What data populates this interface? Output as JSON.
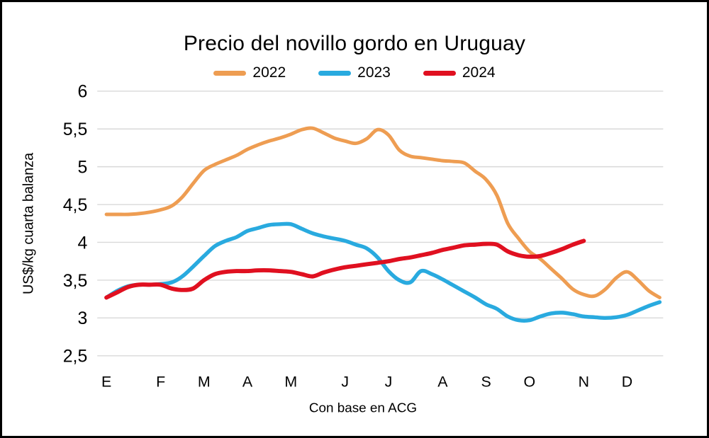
{
  "title": "Precio del novillo gordo en Uruguay",
  "y_axis": {
    "label": "US$/kg cuarta balanza",
    "ticks": [
      {
        "label": "6",
        "value": 6.0
      },
      {
        "label": "5,5",
        "value": 5.5
      },
      {
        "label": "5",
        "value": 5.0
      },
      {
        "label": "4,5",
        "value": 4.5
      },
      {
        "label": "4",
        "value": 4.0
      },
      {
        "label": "3,5",
        "value": 3.5
      },
      {
        "label": "3",
        "value": 3.0
      },
      {
        "label": "2,5",
        "value": 2.5
      }
    ]
  },
  "x_axis": {
    "label": "Con base en ACG"
  },
  "colors": {
    "grid": "#D9D9D9",
    "text": "#000000",
    "border": "#000000",
    "background": "#FFFFFF"
  },
  "chart_data": {
    "type": "line",
    "title": "Precio del novillo gordo en Uruguay",
    "xlabel": "Con base en ACG",
    "ylabel": "US$/kg cuarta balanza",
    "x_unit": "week_of_year",
    "n_weeks": 52,
    "ylim": [
      2.5,
      6.0
    ],
    "y_tick_step": 0.5,
    "grid": "horizontal",
    "legend_position": "top",
    "line_style": "smooth",
    "decimal_separator": "comma",
    "months": [
      "E",
      "F",
      "M",
      "A",
      "M",
      "J",
      "J",
      "A",
      "S",
      "O",
      "N",
      "D"
    ],
    "weeks_per_month": [
      5,
      4,
      4,
      4,
      5,
      4,
      5,
      4,
      4,
      5,
      4,
      4
    ],
    "month_start_weeks": [
      1,
      6,
      10,
      14,
      18,
      23,
      27,
      32,
      36,
      40,
      45,
      49
    ],
    "series": [
      {
        "name": "2022",
        "color": "#EE9D52",
        "values": [
          4.37,
          4.37,
          4.37,
          4.38,
          4.4,
          4.43,
          4.48,
          4.6,
          4.78,
          4.95,
          5.03,
          5.09,
          5.15,
          5.23,
          5.29,
          5.34,
          5.38,
          5.43,
          5.49,
          5.51,
          5.45,
          5.38,
          5.34,
          5.31,
          5.37,
          5.49,
          5.42,
          5.22,
          5.14,
          5.12,
          5.1,
          5.08,
          5.07,
          5.05,
          4.94,
          4.83,
          4.62,
          4.25,
          4.05,
          3.88,
          3.78,
          3.65,
          3.52,
          3.38,
          3.31,
          3.29,
          3.38,
          3.53,
          3.61,
          3.5,
          3.36,
          3.27
        ]
      },
      {
        "name": "2023",
        "color": "#29AADF",
        "values": [
          3.27,
          3.36,
          3.42,
          3.44,
          3.44,
          3.45,
          3.47,
          3.55,
          3.68,
          3.82,
          3.95,
          4.02,
          4.07,
          4.15,
          4.19,
          4.23,
          4.24,
          4.24,
          4.18,
          4.12,
          4.08,
          4.05,
          4.02,
          3.97,
          3.92,
          3.8,
          3.62,
          3.5,
          3.47,
          3.62,
          3.58,
          3.51,
          3.43,
          3.35,
          3.27,
          3.18,
          3.12,
          3.02,
          2.97,
          2.97,
          3.02,
          3.06,
          3.07,
          3.05,
          3.02,
          3.01,
          3.0,
          3.01,
          3.04,
          3.1,
          3.16,
          3.21
        ]
      },
      {
        "name": "2024",
        "color": "#E01020",
        "values": [
          3.27,
          3.34,
          3.41,
          3.44,
          3.44,
          3.44,
          3.39,
          3.37,
          3.39,
          3.5,
          3.58,
          3.61,
          3.62,
          3.62,
          3.63,
          3.63,
          3.62,
          3.61,
          3.58,
          3.55,
          3.6,
          3.64,
          3.67,
          3.69,
          3.71,
          3.73,
          3.75,
          3.78,
          3.8,
          3.83,
          3.86,
          3.9,
          3.93,
          3.96,
          3.97,
          3.98,
          3.97,
          3.88,
          3.83,
          3.81,
          3.82,
          3.86,
          3.91,
          3.97,
          4.02
        ]
      }
    ]
  }
}
